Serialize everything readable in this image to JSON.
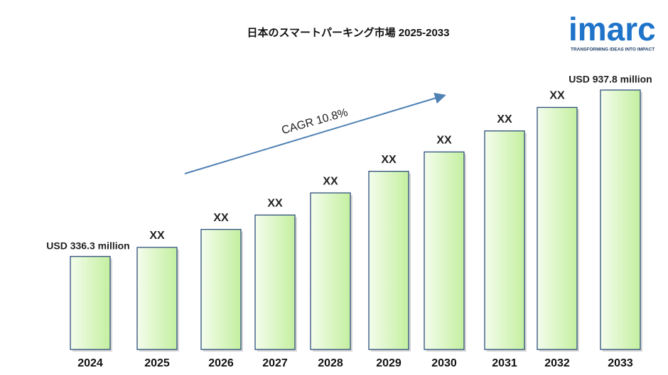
{
  "chart_data": {
    "type": "bar",
    "title": "日本のスマートパーキング市場  2025-2033",
    "categories": [
      "2024",
      "2025",
      "2026",
      "2027",
      "2028",
      "2029",
      "2030",
      "2031",
      "2032",
      "2033"
    ],
    "values": [
      336.3,
      369,
      434,
      486,
      566,
      644,
      714,
      790,
      875,
      937.8
    ],
    "value_labels": [
      "USD 336.3 million",
      "XX",
      "XX",
      "XX",
      "XX",
      "XX",
      "XX",
      "XX",
      "XX",
      "USD  937.8 million"
    ],
    "color": "#c4efa0",
    "annotation": "CAGR 10.8%",
    "logo": {
      "name": "imarc",
      "tagline": "TRANSFORMING IDEAS INTO IMPACT"
    }
  }
}
